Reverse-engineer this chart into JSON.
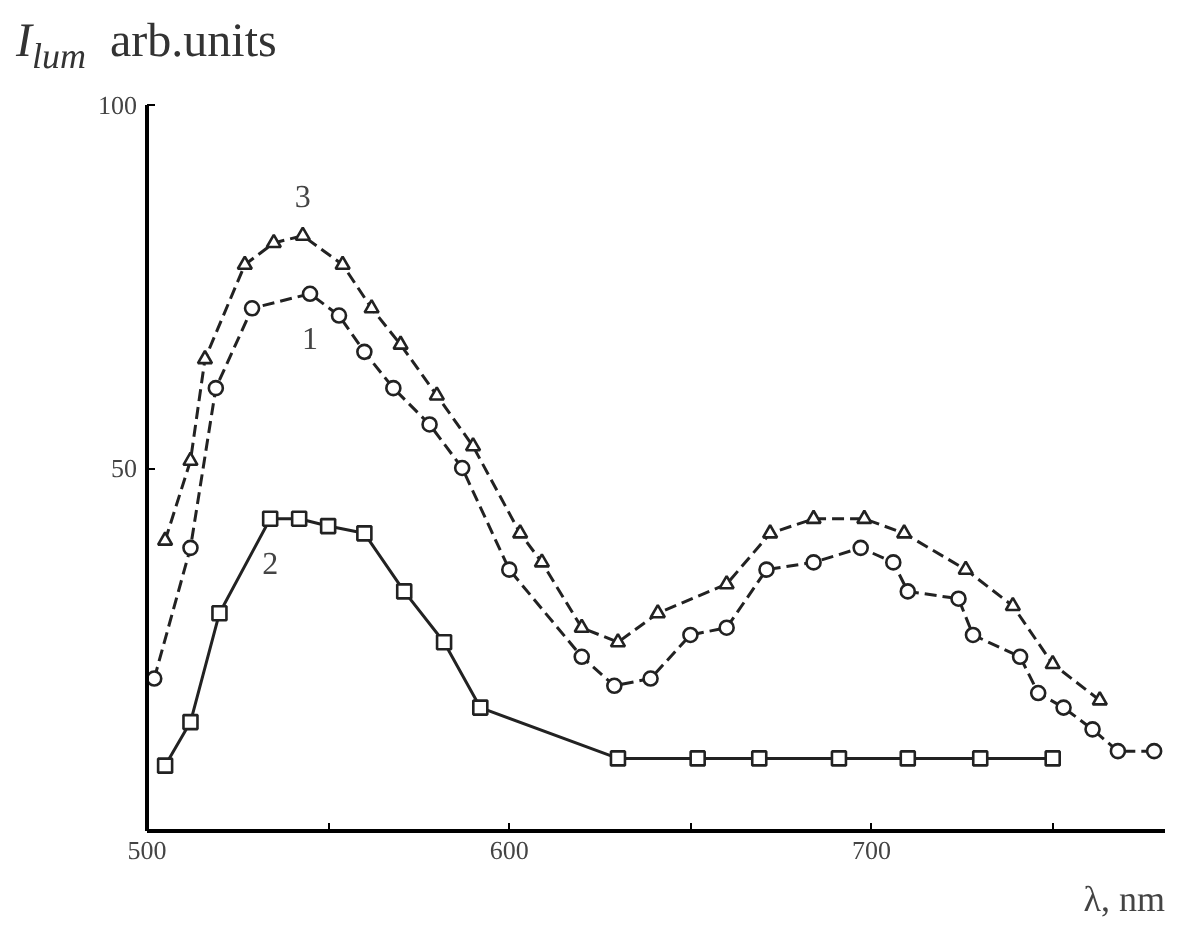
{
  "chart_data": {
    "type": "line",
    "ylabel": "I$_{lum}$ arb.units",
    "xlabel": "λ, nm",
    "xlim": [
      500,
      781
    ],
    "ylim": [
      0,
      100
    ],
    "xticks": [
      500,
      {
        "value": 550,
        "label": null
      },
      600,
      {
        "value": 650,
        "label": null
      },
      700,
      {
        "value": 750,
        "label": null
      }
    ],
    "yticks": [
      50,
      100
    ],
    "grid": false,
    "series": [
      {
        "name": "3",
        "color": "#222222",
        "marker": "triangle",
        "line_style": "dashed",
        "x": [
          505,
          512,
          516,
          527,
          535,
          543,
          554,
          562,
          570,
          580,
          590,
          603,
          609,
          620,
          630,
          641,
          660,
          672,
          684,
          698,
          709,
          726,
          739,
          750,
          763
        ],
        "values": [
          40,
          51,
          65,
          78,
          81,
          82,
          78,
          72,
          67,
          60,
          53,
          41,
          37,
          28,
          26,
          30,
          34,
          41,
          43,
          43,
          41,
          36,
          31,
          23,
          18
        ]
      },
      {
        "name": "1",
        "color": "#222222",
        "marker": "circle",
        "line_style": "dashed",
        "x": [
          502,
          512,
          519,
          529,
          545,
          553,
          560,
          568,
          578,
          587,
          600,
          620,
          629,
          639,
          650,
          660,
          671,
          684,
          697,
          706,
          710,
          724,
          728,
          741,
          746,
          753,
          761,
          768,
          778
        ],
        "values": [
          21,
          39,
          61,
          72,
          74,
          71,
          66,
          61,
          56,
          50,
          36,
          24,
          20,
          21,
          27,
          28,
          36,
          37,
          39,
          37,
          33,
          32,
          27,
          24,
          19,
          17,
          14,
          11,
          11
        ]
      },
      {
        "name": "2",
        "color": "#222222",
        "marker": "square",
        "line_style": "solid",
        "x": [
          505,
          512,
          520,
          534,
          542,
          550,
          560,
          571,
          582,
          592,
          630,
          652,
          669,
          691,
          710,
          730,
          750
        ],
        "values": [
          9,
          15,
          30,
          43,
          43,
          42,
          41,
          33,
          26,
          17,
          10,
          10,
          10,
          10,
          10,
          10,
          10
        ]
      }
    ]
  }
}
